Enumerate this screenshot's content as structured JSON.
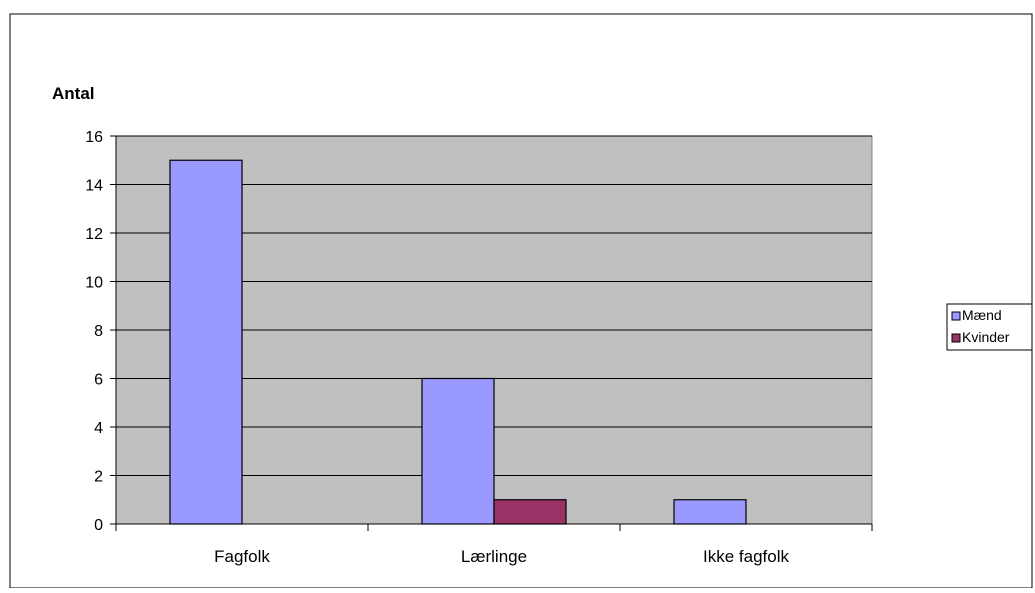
{
  "chart_data": {
    "type": "bar",
    "ylabel": "Antal",
    "xlabel": "",
    "ylim": [
      0,
      16
    ],
    "y_ticks": [
      0,
      2,
      4,
      6,
      8,
      10,
      12,
      14,
      16
    ],
    "grid": true,
    "legend_position": "right",
    "categories": [
      "Fagfolk",
      "Lærlinge",
      "Ikke fagfolk"
    ],
    "series": [
      {
        "name": "Mænd",
        "values": [
          15,
          6,
          1
        ],
        "color": "#9999ff"
      },
      {
        "name": "Kvinder",
        "values": [
          0,
          1,
          0
        ],
        "color": "#993366"
      }
    ],
    "plot_background": "#c0c0c0",
    "grid_color": "#000000"
  }
}
